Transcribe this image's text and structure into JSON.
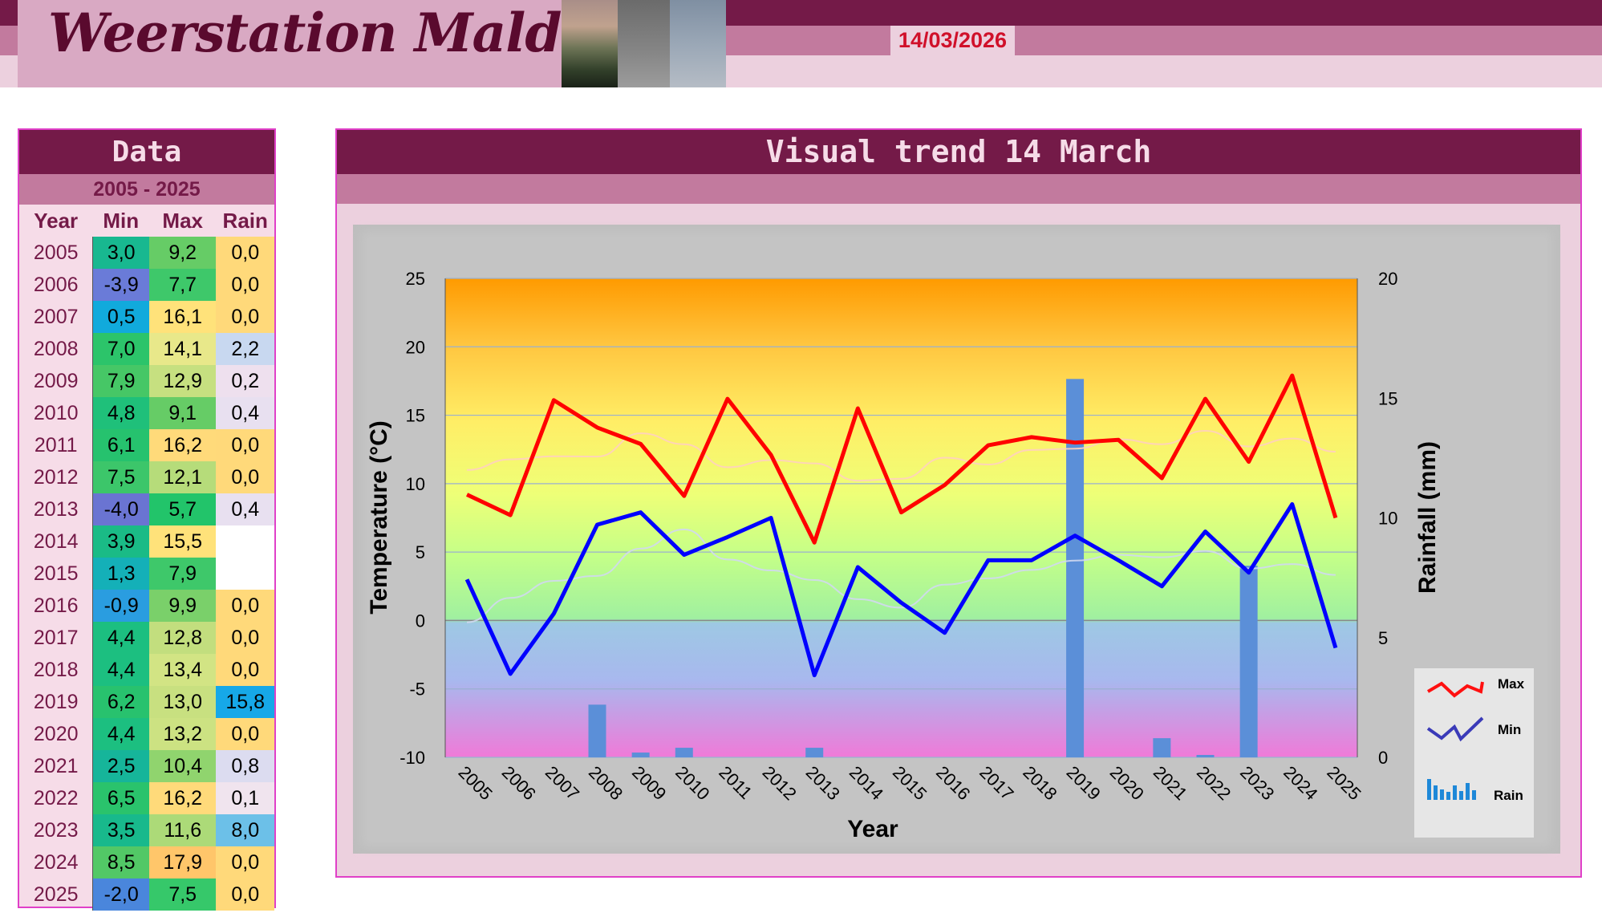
{
  "header": {
    "site_title": "Weerstation Malderen",
    "date": "14/03/2026"
  },
  "table": {
    "title": "Data",
    "range": "2005 - 2025",
    "columns": [
      "Year",
      "Min",
      "Max",
      "Rain"
    ],
    "rows": [
      {
        "year": "2005",
        "min": "3,0",
        "max": "9,2",
        "rain": "0,0",
        "min_color": "#18b890",
        "max_color": "#66cc66",
        "rain_color": "#ffd97a"
      },
      {
        "year": "2006",
        "min": "-3,9",
        "max": "7,7",
        "rain": "0,0",
        "min_color": "#6a7bd8",
        "max_color": "#3ec86a",
        "rain_color": "#ffd97a"
      },
      {
        "year": "2007",
        "min": "0,5",
        "max": "16,1",
        "rain": "0,0",
        "min_color": "#11aadc",
        "max_color": "#ffe27a",
        "rain_color": "#ffd97a"
      },
      {
        "year": "2008",
        "min": "7,0",
        "max": "14,1",
        "rain": "2,2",
        "min_color": "#2cc46a",
        "max_color": "#e8e88a",
        "rain_color": "#c8d8f0"
      },
      {
        "year": "2009",
        "min": "7,9",
        "max": "12,9",
        "rain": "0,2",
        "min_color": "#46c766",
        "max_color": "#c6e080",
        "rain_color": "#eee0ee"
      },
      {
        "year": "2010",
        "min": "4,8",
        "max": "9,1",
        "rain": "0,4",
        "min_color": "#1fc07a",
        "max_color": "#66cc66",
        "rain_color": "#e8e0f0"
      },
      {
        "year": "2011",
        "min": "6,1",
        "max": "16,2",
        "rain": "0,0",
        "min_color": "#26c26e",
        "max_color": "#ffda7a",
        "rain_color": "#ffd97a"
      },
      {
        "year": "2012",
        "min": "7,5",
        "max": "12,1",
        "rain": "0,0",
        "min_color": "#3cc66a",
        "max_color": "#b6dc7a",
        "rain_color": "#ffd97a"
      },
      {
        "year": "2013",
        "min": "-4,0",
        "max": "5,7",
        "rain": "0,4",
        "min_color": "#6a74d2",
        "max_color": "#22c46a",
        "rain_color": "#e8e0f0"
      },
      {
        "year": "2014",
        "min": "3,9",
        "max": "15,5",
        "rain": "",
        "min_color": "#1abb86",
        "max_color": "#ffe27a",
        "rain_color": "#ffffff"
      },
      {
        "year": "2015",
        "min": "1,3",
        "max": "7,9",
        "rain": "",
        "min_color": "#14b0b8",
        "max_color": "#3ec86a",
        "rain_color": "#ffffff"
      },
      {
        "year": "2016",
        "min": "-0,9",
        "max": "9,9",
        "rain": "0,0",
        "min_color": "#2a9de0",
        "max_color": "#7ad06a",
        "rain_color": "#ffd97a"
      },
      {
        "year": "2017",
        "min": "4,4",
        "max": "12,8",
        "rain": "0,0",
        "min_color": "#1cbf80",
        "max_color": "#c2de7e",
        "rain_color": "#ffd97a"
      },
      {
        "year": "2018",
        "min": "4,4",
        "max": "13,4",
        "rain": "0,0",
        "min_color": "#1cbf80",
        "max_color": "#d2e484",
        "rain_color": "#ffd97a"
      },
      {
        "year": "2019",
        "min": "6,2",
        "max": "13,0",
        "rain": "15,8",
        "min_color": "#28c26e",
        "max_color": "#c8e080",
        "rain_color": "#16a8e8"
      },
      {
        "year": "2020",
        "min": "4,4",
        "max": "13,2",
        "rain": "0,0",
        "min_color": "#1cbf80",
        "max_color": "#cce282",
        "rain_color": "#ffd97a"
      },
      {
        "year": "2021",
        "min": "2,5",
        "max": "10,4",
        "rain": "0,8",
        "min_color": "#16b59a",
        "max_color": "#90d46e",
        "rain_color": "#dcdcf0"
      },
      {
        "year": "2022",
        "min": "6,5",
        "max": "16,2",
        "rain": "0,1",
        "min_color": "#2ac36c",
        "max_color": "#ffda7a",
        "rain_color": "#f0e4ee"
      },
      {
        "year": "2023",
        "min": "3,5",
        "max": "11,6",
        "rain": "8,0",
        "min_color": "#18b98c",
        "max_color": "#acda78",
        "rain_color": "#6cc0e8"
      },
      {
        "year": "2024",
        "min": "8,5",
        "max": "17,9",
        "rain": "0,0",
        "min_color": "#52c866",
        "max_color": "#ffc66a",
        "rain_color": "#ffd97a"
      },
      {
        "year": "2025",
        "min": "-2,0",
        "max": "7,5",
        "rain": "0,0",
        "min_color": "#4a86dc",
        "max_color": "#36c86a",
        "rain_color": "#ffd97a"
      }
    ]
  },
  "chart_data": {
    "type": "line",
    "title": "Visual trend 14 March",
    "xlabel": "Year",
    "ylabel": "Temperature (°C)",
    "y2label": "Rainfall (mm)",
    "ylim": [
      -10,
      25
    ],
    "y2lim": [
      0,
      20
    ],
    "yticks": [
      "-10",
      "-5",
      "0",
      "5",
      "10",
      "15",
      "20",
      "25"
    ],
    "y2ticks": [
      "0",
      "5",
      "10",
      "15",
      "20"
    ],
    "categories": [
      "2005",
      "2006",
      "2007",
      "2008",
      "2009",
      "2010",
      "2011",
      "2012",
      "2013",
      "2014",
      "2015",
      "2016",
      "2017",
      "2018",
      "2019",
      "2020",
      "2021",
      "2022",
      "2023",
      "2024",
      "2025"
    ],
    "series": [
      {
        "name": "Max",
        "type": "line",
        "axis": "left",
        "color": "#ff0000",
        "values": [
          9.2,
          7.7,
          16.1,
          14.1,
          12.9,
          9.1,
          16.2,
          12.1,
          5.7,
          15.5,
          7.9,
          9.9,
          12.8,
          13.4,
          13.0,
          13.2,
          10.4,
          16.2,
          11.6,
          17.9,
          7.5
        ]
      },
      {
        "name": "Min",
        "type": "line",
        "axis": "left",
        "color": "#0000ff",
        "values": [
          3.0,
          -3.9,
          0.5,
          7.0,
          7.9,
          4.8,
          6.1,
          7.5,
          -4.0,
          3.9,
          1.3,
          -0.9,
          4.4,
          4.4,
          6.2,
          4.4,
          2.5,
          6.5,
          3.5,
          8.5,
          -2.0
        ]
      },
      {
        "name": "Rain",
        "type": "bar",
        "axis": "right",
        "color": "#5b8fd8",
        "values": [
          0.0,
          0.0,
          0.0,
          2.2,
          0.2,
          0.4,
          0.0,
          0.0,
          0.4,
          null,
          null,
          0.0,
          0.0,
          0.0,
          15.8,
          0.0,
          0.8,
          0.1,
          8.0,
          0.0,
          0.0
        ]
      }
    ],
    "legend": {
      "position": "bottom-right",
      "items": [
        "Max",
        "Min",
        "Rain"
      ]
    },
    "grid": true
  }
}
